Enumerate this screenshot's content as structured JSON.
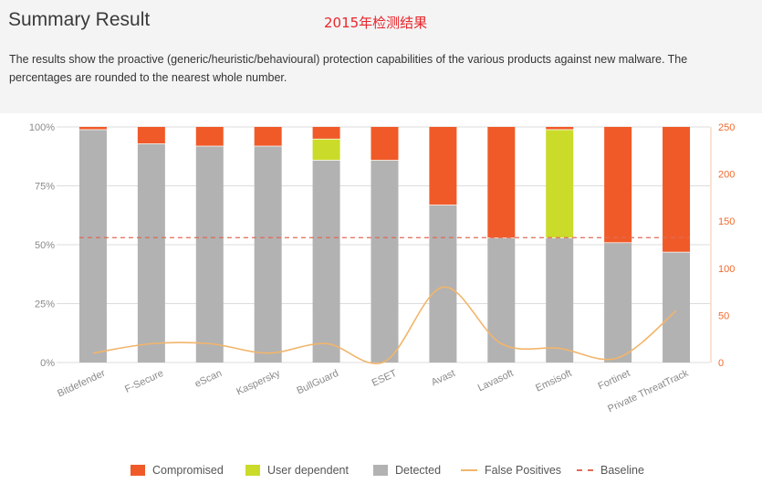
{
  "header": {
    "title": "Summary Result",
    "subtitle": "2015年检测结果",
    "description_line1": "The results show the proactive (generic/heuristic/behavioural) protection capabilities of the various products against new malware. The",
    "description_line2": "percentages are rounded to the nearest whole number."
  },
  "colors": {
    "compromised": "#f05a28",
    "user_dependent": "#cadb2a",
    "detected": "#b2b2b2",
    "false_positives": "#f2b56b",
    "baseline": "#e06a55",
    "right_axis": "#f26a2c"
  },
  "legend": {
    "compromised": "Compromised",
    "user_dependent": "User dependent",
    "detected": "Detected",
    "false_positives": "False Positives",
    "baseline": "Baseline"
  },
  "chart_data": {
    "type": "bar",
    "stacked": true,
    "categories": [
      "Bitdefender",
      "F-Secure",
      "eScan",
      "Kaspersky",
      "BullGuard",
      "ESET",
      "Avast",
      "Lavasoft",
      "Emsisoft",
      "Fortinet",
      "Private ThreatTrack"
    ],
    "series": [
      {
        "name": "Detected",
        "axis": "left",
        "values": [
          99,
          93,
          92,
          92,
          86,
          86,
          67,
          53,
          53,
          51,
          47
        ]
      },
      {
        "name": "User dependent",
        "axis": "left",
        "values": [
          0,
          0,
          0,
          0,
          9,
          0,
          0,
          0,
          46,
          0,
          0
        ]
      },
      {
        "name": "Compromised",
        "axis": "left",
        "values": [
          1,
          7,
          8,
          8,
          5,
          14,
          33,
          47,
          1,
          49,
          53
        ]
      },
      {
        "name": "False Positives",
        "type": "line",
        "axis": "right",
        "values": [
          10,
          20,
          20,
          10,
          20,
          1,
          80,
          20,
          15,
          5,
          55
        ]
      }
    ],
    "baseline": {
      "name": "Baseline",
      "axis": "left",
      "value": 53
    },
    "left_axis": {
      "ticks": [
        "0%",
        "25%",
        "50%",
        "75%",
        "100%"
      ],
      "ylim": [
        0,
        100
      ]
    },
    "right_axis": {
      "ticks": [
        "0",
        "50",
        "100",
        "150",
        "200",
        "250"
      ],
      "ylim": [
        0,
        250
      ]
    }
  }
}
